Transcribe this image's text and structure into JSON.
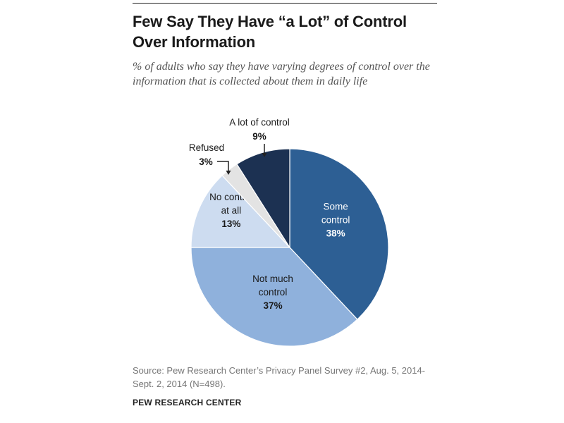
{
  "title": "Few Say They Have “a Lot” of Control Over Information",
  "subtitle": "% of adults who say they have varying degrees of control over the information that is collected about them in daily life",
  "source": "Source: Pew Research Center’s Privacy Panel Survey #2, Aug. 5, 2014-Sept. 2, 2014 (N=498).",
  "organization": "PEW RESEARCH CENTER",
  "chart_data": {
    "type": "pie",
    "title": "",
    "start_angle_deg": 0,
    "direction": "clockwise",
    "slices": [
      {
        "label": "Some control",
        "value": 38,
        "value_label": "38%",
        "color": "#2d5f94",
        "text_color": "#ffffff"
      },
      {
        "label": "Not much control",
        "value": 37,
        "value_label": "37%",
        "color": "#8fb1dc",
        "text_color": "#1a1a1a"
      },
      {
        "label": "No control at all",
        "value": 13,
        "value_label": "13%",
        "color": "#cddcf0",
        "text_color": "#1a1a1a"
      },
      {
        "label": "Refused",
        "value": 3,
        "value_label": "3%",
        "color": "#e3e3e3",
        "text_color": "#1a1a1a"
      },
      {
        "label": "A lot of control",
        "value": 9,
        "value_label": "9%",
        "color": "#1c3152",
        "text_color": "#1a1a1a"
      }
    ]
  }
}
